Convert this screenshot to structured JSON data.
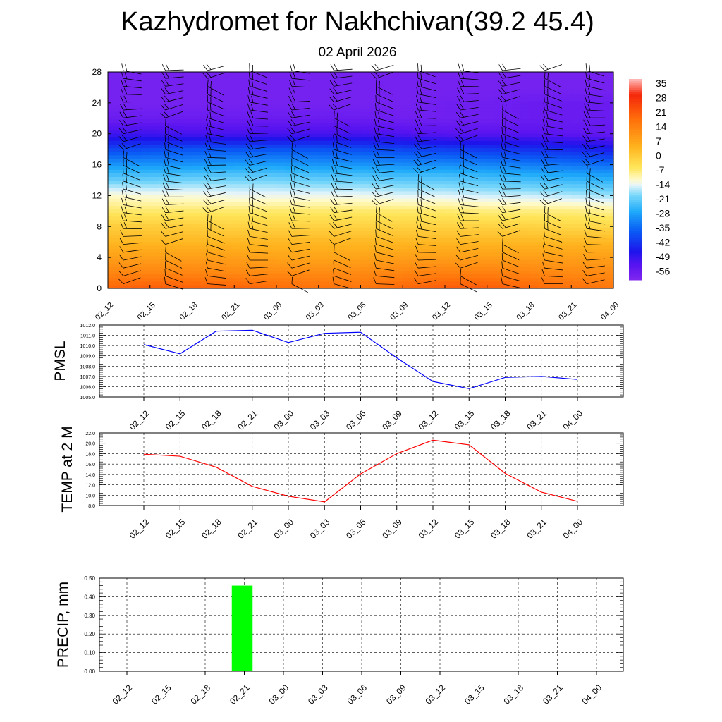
{
  "header": {
    "title": "Kazhydromet for Nakhchivan(39.2 45.4)",
    "subtitle": "02 April 2026"
  },
  "time_labels": [
    "02_12",
    "02_15",
    "02_18",
    "02_21",
    "03_00",
    "03_03",
    "03_06",
    "03_09",
    "03_12",
    "03_15",
    "03_18",
    "03_21",
    "04_00"
  ],
  "chart_data": [
    {
      "type": "heatmap",
      "name": "temperature-height-section",
      "title": "Kazhydromet for Nakhchivan(39.2 45.4)",
      "subtitle": "02 April 2026",
      "xlabel": "",
      "ylabel": "",
      "x": [
        "02_12",
        "02_15",
        "02_18",
        "02_21",
        "03_00",
        "03_03",
        "03_06",
        "03_09",
        "03_12",
        "03_15",
        "03_18",
        "03_21",
        "04_00"
      ],
      "ylim": [
        0,
        28
      ],
      "yticks": [
        0,
        4,
        8,
        12,
        16,
        20,
        24,
        28
      ],
      "colorbar_ticks": [
        "35",
        "28",
        "21",
        "14",
        "7",
        "0",
        "-7",
        "-14",
        "-21",
        "-28",
        "-35",
        "-42",
        "-49",
        "-56"
      ],
      "color_range": [
        -60,
        38
      ],
      "levels": [
        0,
        2,
        4,
        6,
        8,
        10,
        12,
        14,
        16,
        18,
        20,
        22,
        24,
        26,
        28
      ],
      "values": [
        [
          20,
          22,
          21,
          21,
          19,
          18,
          17,
          20,
          22,
          22,
          20,
          18,
          17
        ],
        [
          14,
          14,
          14,
          13,
          13,
          13,
          13,
          14,
          15,
          15,
          14,
          13,
          13
        ],
        [
          9,
          9,
          9,
          9,
          8,
          8,
          8,
          9,
          9,
          9,
          9,
          9,
          9
        ],
        [
          4,
          4,
          4,
          4,
          4,
          4,
          4,
          4,
          4,
          4,
          4,
          4,
          4
        ],
        [
          0,
          0,
          0,
          -1,
          -1,
          -1,
          -1,
          -1,
          -1,
          -1,
          -1,
          -2,
          -2
        ],
        [
          -6,
          -6,
          -6,
          -6,
          -6,
          -6,
          -6,
          -6,
          -6,
          -7,
          -7,
          -7,
          -8
        ],
        [
          -11,
          -12,
          -12,
          -13,
          -13,
          -13,
          -13,
          -14,
          -14,
          -15,
          -15,
          -16,
          -17
        ],
        [
          -20,
          -20,
          -19,
          -19,
          -19,
          -20,
          -20,
          -21,
          -21,
          -22,
          -23,
          -24,
          -25
        ],
        [
          -29,
          -29,
          -29,
          -28,
          -28,
          -29,
          -29,
          -30,
          -30,
          -31,
          -32,
          -33,
          -34
        ],
        [
          -39,
          -38,
          -37,
          -37,
          -37,
          -37,
          -38,
          -39,
          -40,
          -41,
          -42,
          -43,
          -45
        ],
        [
          -50,
          -50,
          -51,
          -51,
          -51,
          -51,
          -51,
          -52,
          -53,
          -53,
          -53,
          -54,
          -55
        ],
        [
          -56,
          -56,
          -56,
          -56,
          -56,
          -56,
          -56,
          -57,
          -57,
          -57,
          -56,
          -56,
          -56
        ],
        [
          -58,
          -58,
          -58,
          -58,
          -58,
          -58,
          -58,
          -58,
          -57,
          -57,
          -56,
          -56,
          -56
        ],
        [
          -58,
          -58,
          -58,
          -58,
          -58,
          -58,
          -58,
          -58,
          -58,
          -58,
          -58,
          -58,
          -58
        ],
        [
          -58,
          -58,
          -58,
          -58,
          -58,
          -58,
          -58,
          -58,
          -58,
          -58,
          -58,
          -58,
          -58
        ]
      ],
      "wind_barbs": "shown at every time step and level"
    },
    {
      "type": "line",
      "name": "pmsl",
      "ylabel": "PMSL",
      "x": [
        "02_12",
        "02_15",
        "02_18",
        "02_21",
        "03_00",
        "03_03",
        "03_06",
        "03_09",
        "03_12",
        "03_15",
        "03_18",
        "03_21",
        "04_00"
      ],
      "values": [
        1010.1,
        1009.2,
        1011.4,
        1011.5,
        1010.3,
        1011.2,
        1011.3,
        1008.8,
        1006.5,
        1005.8,
        1006.9,
        1007.0,
        1006.7
      ],
      "ylim": [
        1005.0,
        1012.0
      ],
      "yticks": [
        "1005.0",
        "1006.0",
        "1007.0",
        "1008.0",
        "1009.0",
        "1010.0",
        "1011.0",
        "1012.0"
      ],
      "color": "#0000ff",
      "grid": true
    },
    {
      "type": "line",
      "name": "temp-2m",
      "ylabel": "TEMP at 2 M",
      "x": [
        "02_12",
        "02_15",
        "02_18",
        "02_21",
        "03_00",
        "03_03",
        "03_06",
        "03_09",
        "03_12",
        "03_15",
        "03_18",
        "03_21",
        "04_00"
      ],
      "values": [
        17.9,
        17.5,
        15.4,
        11.7,
        9.8,
        8.7,
        14.1,
        18.0,
        20.6,
        19.7,
        14.2,
        10.6,
        8.8
      ],
      "ylim": [
        8.0,
        22.0
      ],
      "yticks": [
        "8.0",
        "10.0",
        "12.0",
        "14.0",
        "16.0",
        "18.0",
        "20.0",
        "22.0"
      ],
      "color": "#ff0000",
      "grid": true
    },
    {
      "type": "bar",
      "name": "precip",
      "ylabel": "PRECIP, mm",
      "categories": [
        "02_12",
        "02_15",
        "02_18",
        "02_21",
        "03_00",
        "03_03",
        "03_06",
        "03_09",
        "03_12",
        "03_15",
        "03_18",
        "03_21",
        "04_00"
      ],
      "values": [
        0,
        0,
        0,
        0.46,
        0,
        0,
        0,
        0,
        0,
        0,
        0,
        0,
        0
      ],
      "ylim": [
        0.0,
        0.5
      ],
      "yticks": [
        "0.00",
        "0.10",
        "0.20",
        "0.30",
        "0.40",
        "0.50"
      ],
      "color": "#00ff00",
      "grid": true
    }
  ]
}
